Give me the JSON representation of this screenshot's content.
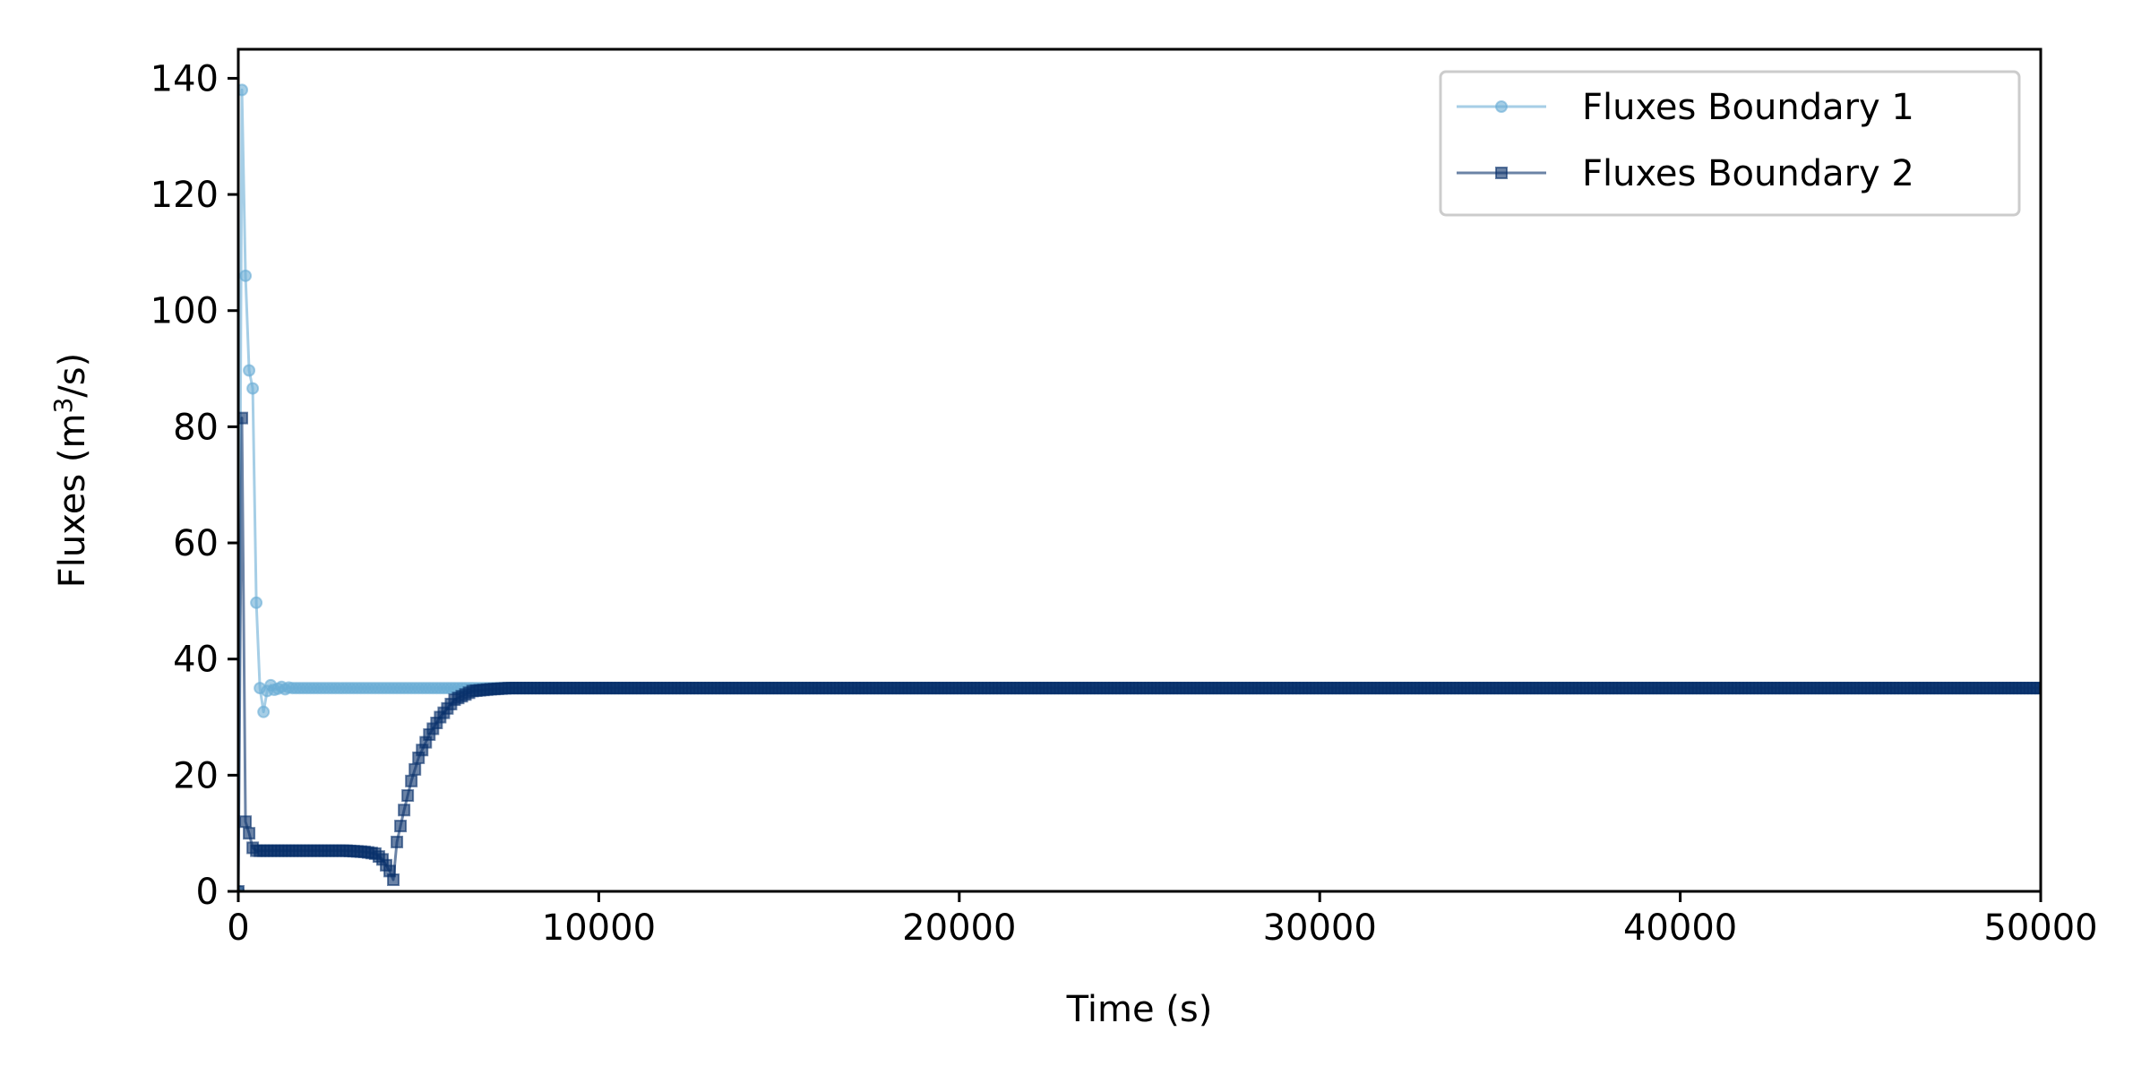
{
  "chart_data": {
    "type": "line",
    "xlabel": "Time (s)",
    "ylabel": {
      "prefix": "Fluxes (m",
      "superscript": "3",
      "suffix": "/s)"
    },
    "xlim": [
      0,
      50000
    ],
    "ylim": [
      0,
      145
    ],
    "xticks": [
      0,
      10000,
      20000,
      30000,
      40000,
      50000
    ],
    "yticks": [
      0,
      20,
      40,
      60,
      80,
      100,
      120,
      140
    ],
    "grid": false,
    "legend_position": "top-right",
    "series": [
      {
        "name": "Fluxes Boundary 1",
        "color": "#6baed6",
        "marker": "circle",
        "opacity": 0.6,
        "x": [
          0,
          100,
          200,
          300,
          400,
          500,
          600,
          700,
          800,
          900,
          1000,
          1100,
          1200,
          1300,
          1400,
          1500,
          1700,
          2000,
          3000,
          5000,
          8000,
          50000
        ],
        "y": [
          0,
          138,
          106,
          89.7,
          86.6,
          49.7,
          35,
          30.9,
          34.5,
          35.5,
          34.7,
          34.9,
          35.2,
          34.8,
          35.1,
          35,
          35,
          35,
          35,
          35,
          35,
          35
        ]
      },
      {
        "name": "Fluxes Boundary 2",
        "color": "#08306b",
        "marker": "square",
        "opacity": 0.6,
        "x": [
          0,
          100,
          200,
          300,
          400,
          500,
          600,
          800,
          1000,
          2000,
          3000,
          3500,
          3800,
          4000,
          4100,
          4200,
          4300,
          4400,
          4600,
          4800,
          5000,
          5300,
          5600,
          6000,
          6500,
          7000,
          7500,
          8000,
          10000,
          50000
        ],
        "y": [
          0,
          81.5,
          12,
          10,
          7.5,
          7,
          7,
          7,
          7,
          7,
          7,
          6.8,
          6.5,
          5.5,
          4.5,
          3.5,
          2,
          8.5,
          14,
          19,
          23,
          27,
          30,
          33,
          34.5,
          34.8,
          35,
          35,
          35,
          35
        ]
      }
    ]
  }
}
